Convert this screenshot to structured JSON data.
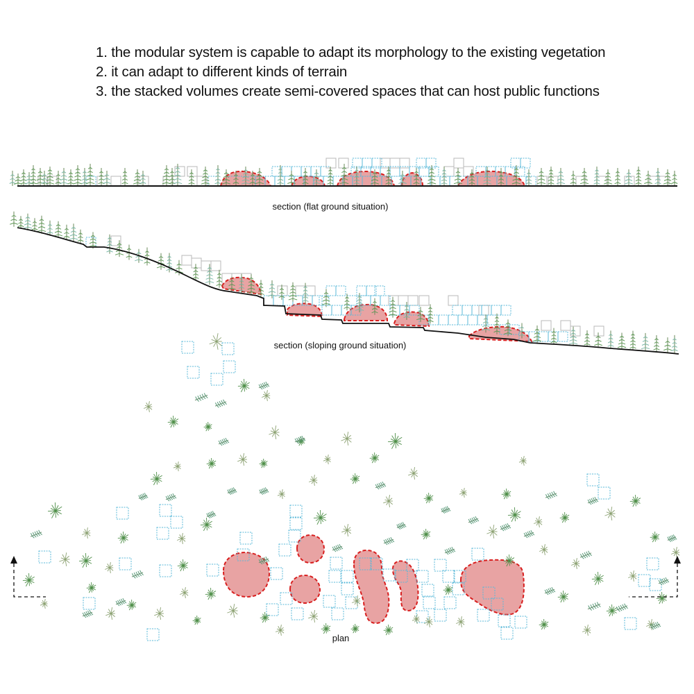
{
  "notes": [
    "1. the modular system is capable to adapt its morphology to the existing vegetation",
    "2. it can adapt to different kinds of terrain",
    "3. the stacked volumes create semi-covered spaces that can host public functions"
  ],
  "captions": {
    "flat": "section (flat ground situation)",
    "sloping": "section (sloping ground situation)",
    "plan": "plan"
  },
  "colors": {
    "module_outline": "#5ab8d8",
    "module_ghost": "#b8b8b8",
    "vegetation": "#5f9a58",
    "public_space_fill": "#e8a3a3",
    "public_space_outline": "#d81e1e",
    "ground": "#111111"
  },
  "legend_marks": [
    "section-arrow-icon",
    "section-arrow-icon"
  ]
}
